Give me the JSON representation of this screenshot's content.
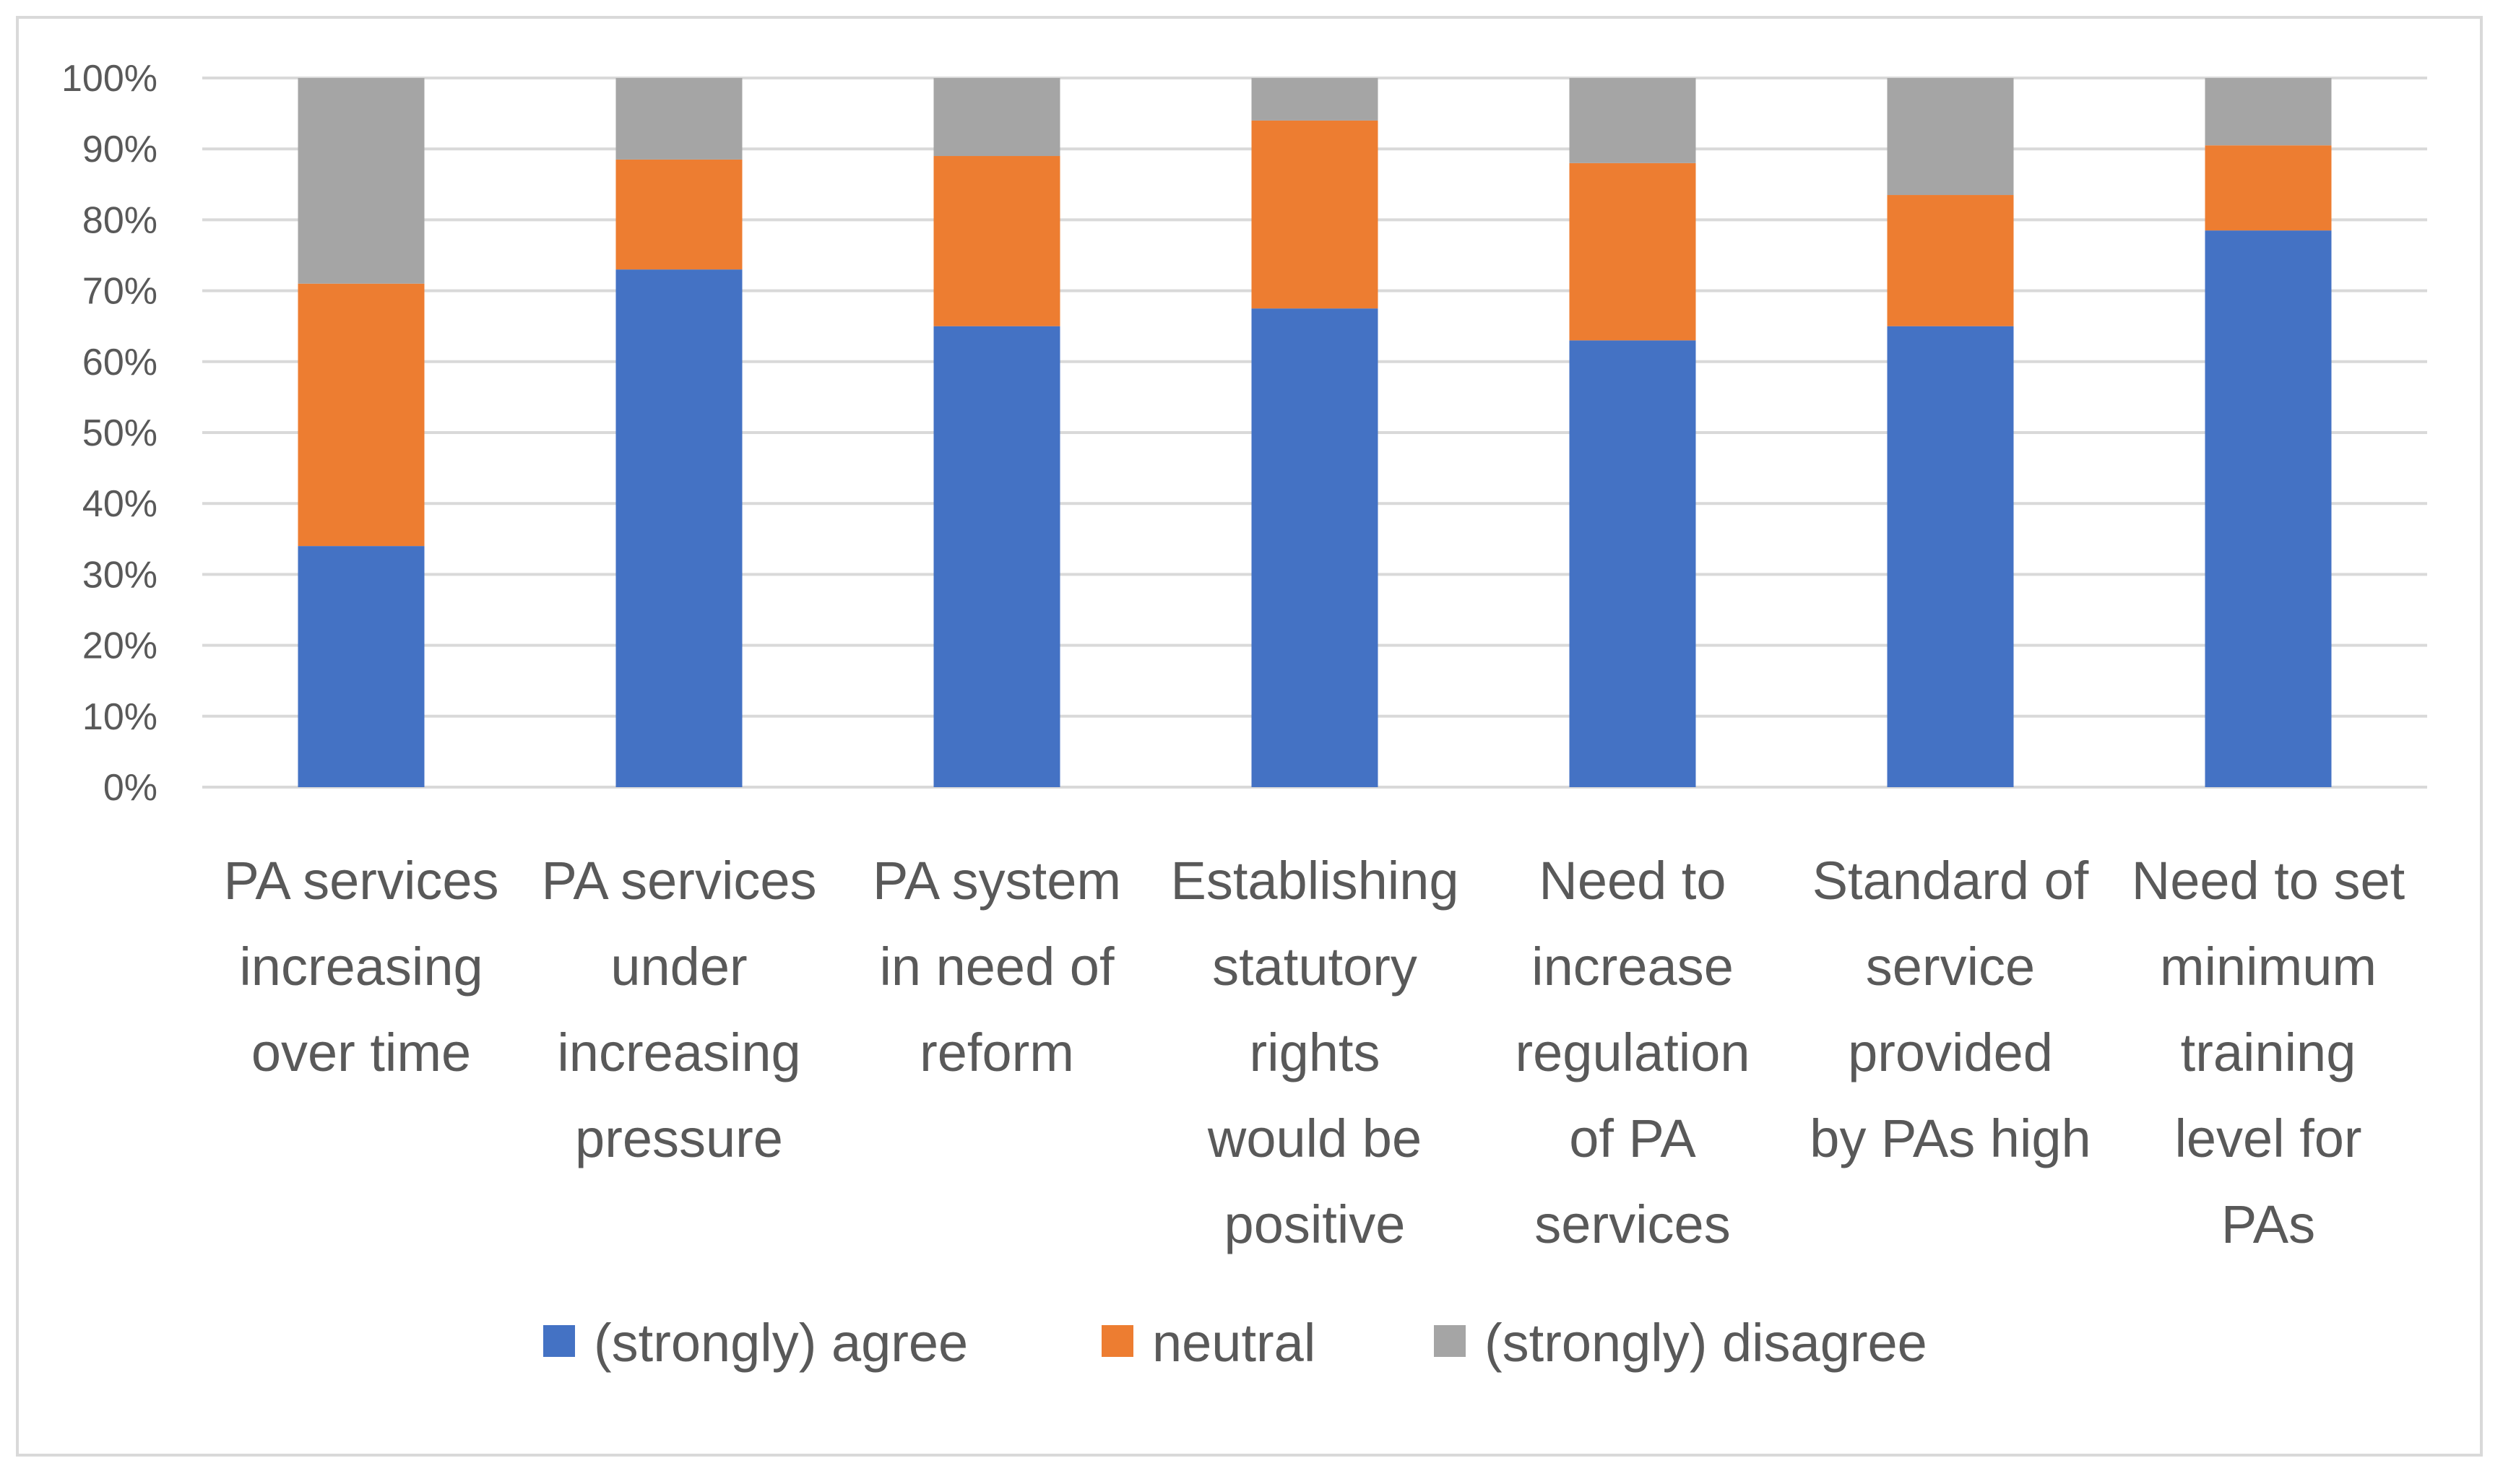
{
  "chart_data": {
    "type": "bar",
    "stacked": true,
    "title": "",
    "xlabel": "",
    "ylabel": "",
    "ylim": [
      0,
      100
    ],
    "y_ticks": [
      "0%",
      "10%",
      "20%",
      "30%",
      "40%",
      "50%",
      "60%",
      "70%",
      "80%",
      "90%",
      "100%"
    ],
    "grid": true,
    "legend_position": "bottom",
    "categories": [
      [
        "PA services",
        "increasing",
        "over time"
      ],
      [
        "PA services",
        "under",
        "increasing",
        "pressure"
      ],
      [
        "PA system",
        "in need of",
        "reform"
      ],
      [
        "Establishing",
        "statutory",
        "rights",
        "would be",
        "positive"
      ],
      [
        "Need to",
        "increase",
        "regulation",
        "of PA",
        "services"
      ],
      [
        "Standard of",
        "service",
        "provided",
        "by PAs high"
      ],
      [
        "Need to set",
        "minimum",
        "training",
        "level for",
        "PAs"
      ]
    ],
    "series": [
      {
        "name": "(strongly) agree",
        "color": "#4472C4",
        "values": [
          34,
          73,
          65,
          67.5,
          63,
          65,
          78.5
        ]
      },
      {
        "name": "neutral",
        "color": "#ED7D31",
        "values": [
          37,
          15.5,
          24,
          26.5,
          25,
          18.5,
          12
        ]
      },
      {
        "name": "(strongly) disagree",
        "color": "#A5A5A5",
        "values": [
          29,
          11.5,
          11,
          6,
          12,
          16.5,
          9.5
        ]
      }
    ],
    "gridline_color": "#D9D9D9"
  }
}
